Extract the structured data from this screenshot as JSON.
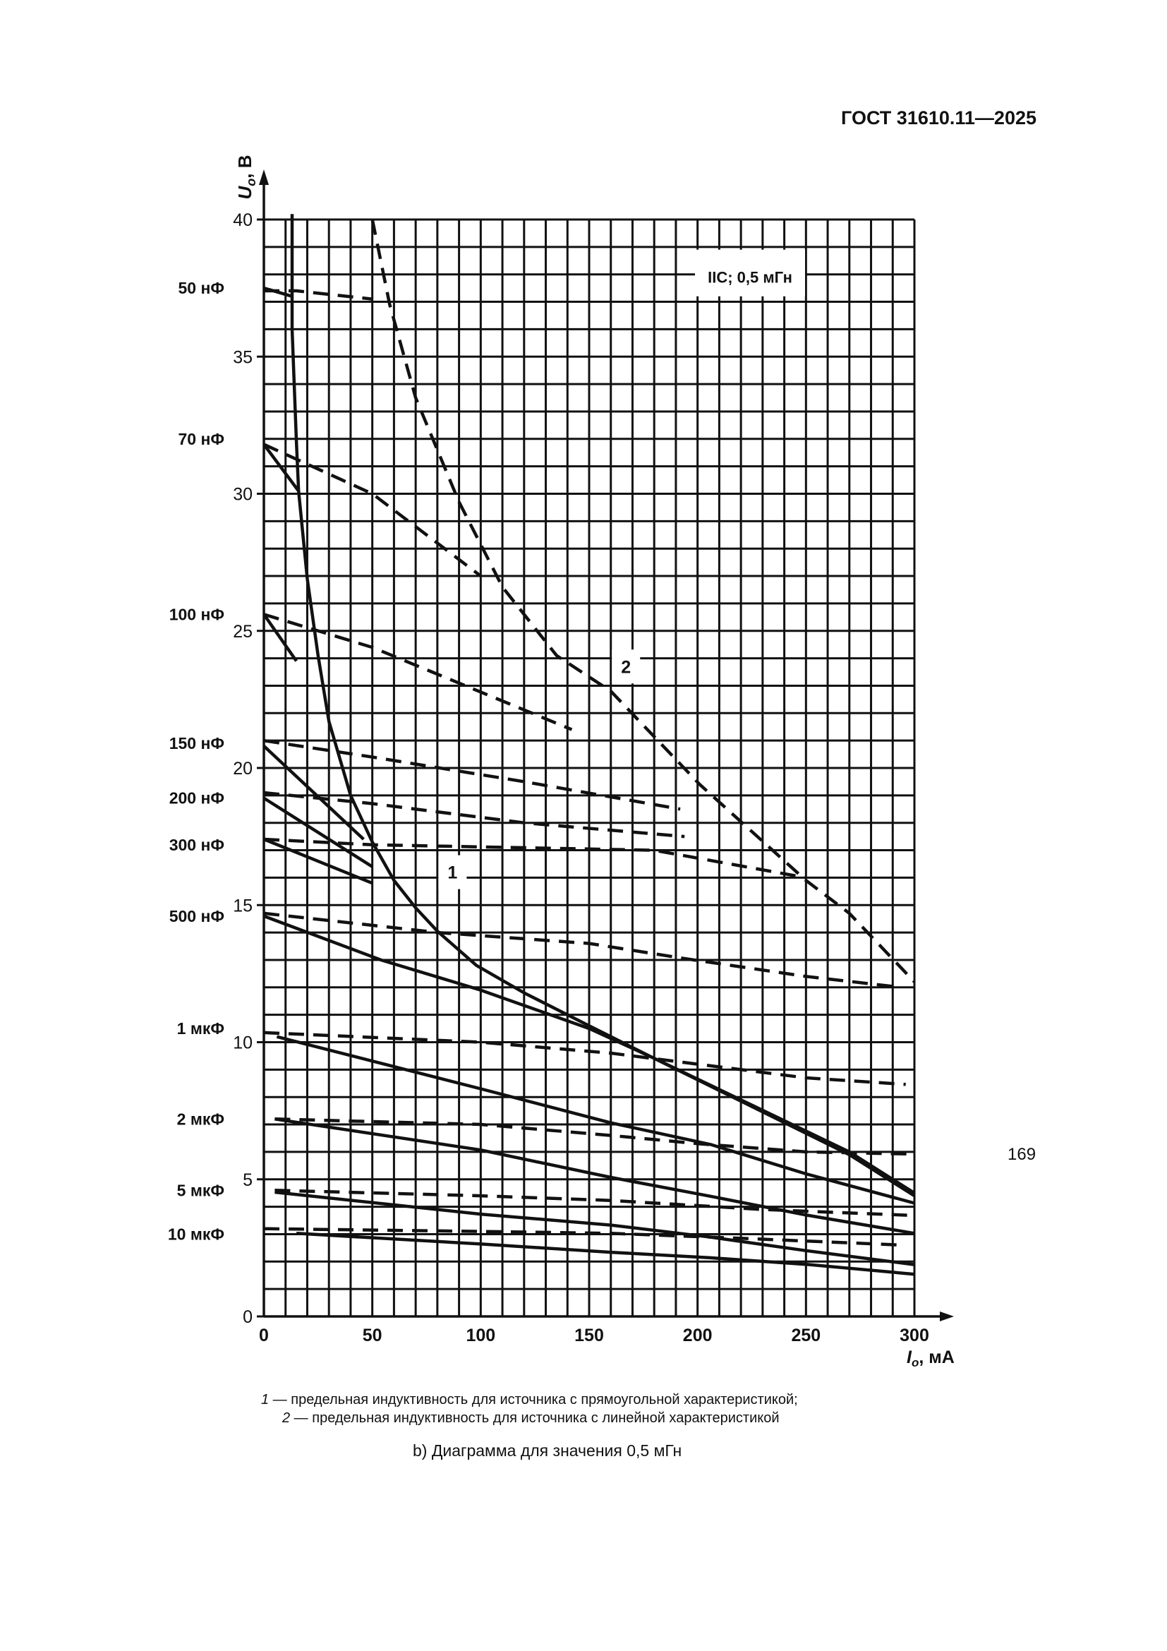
{
  "header": "ГОСТ 31610.11—2025",
  "page_number": "169",
  "legend": [
    {
      "num": "1",
      "text": " — предельная индуктивность для источника с прямоугольной характеристикой;"
    },
    {
      "num": "2",
      "text": " — предельная индуктивность для источника с линейной характеристикой"
    }
  ],
  "caption": "b) Диаграмма для значения 0,5 мГн",
  "chart_data": {
    "type": "line",
    "title": "",
    "annotation": "IIC; 0,5 мГн",
    "xlabel_var": "I",
    "xlabel_sub": "o",
    "xlabel_unit": ", мА",
    "ylabel_var": "U",
    "ylabel_sub": "o",
    "ylabel_unit": ", В",
    "xlim": [
      0,
      300
    ],
    "ylim": [
      0,
      40
    ],
    "x_ticks": [
      0,
      50,
      100,
      150,
      200,
      250,
      300
    ],
    "y_ticks": [
      0,
      5,
      10,
      15,
      20,
      25,
      30,
      35,
      40
    ],
    "grid": {
      "x_step": 10,
      "y_step": 1
    },
    "curves": [
      {
        "label": "1",
        "style": "solid",
        "label_pos": [
          87,
          16.2
        ],
        "points": [
          [
            13,
            40.2
          ],
          [
            13,
            36
          ],
          [
            15,
            31.9
          ],
          [
            16,
            30.1
          ],
          [
            20,
            26.9
          ],
          [
            25,
            24.1
          ],
          [
            30,
            21.7
          ],
          [
            40,
            19
          ],
          [
            50,
            17.3
          ],
          [
            60,
            15.9
          ],
          [
            70,
            14.9
          ],
          [
            80,
            14.05
          ],
          [
            98,
            12.8
          ],
          [
            120,
            11.8
          ],
          [
            150,
            10.6
          ],
          [
            179,
            9.45
          ],
          [
            220,
            7.9
          ],
          [
            270,
            6.0
          ],
          [
            300,
            4.5
          ]
        ]
      },
      {
        "label": "2",
        "style": "dashed",
        "label_pos": [
          167,
          23.7
        ],
        "points": [
          [
            50,
            40
          ],
          [
            58,
            36.9
          ],
          [
            70,
            33.5
          ],
          [
            90,
            29.7
          ],
          [
            110,
            26.6
          ],
          [
            135,
            24.1
          ],
          [
            160,
            22.8
          ],
          [
            201,
            19.4
          ],
          [
            250,
            15.9
          ],
          [
            270,
            14.7
          ],
          [
            300,
            12.2
          ]
        ]
      }
    ],
    "capacitance_series": [
      {
        "name": "50 нФ",
        "label_y": 37.5,
        "solid": [
          [
            0,
            37.5
          ],
          [
            13,
            37.2
          ]
        ],
        "dashed": [
          [
            0,
            37.4
          ],
          [
            15,
            37.4
          ],
          [
            50,
            37.1
          ]
        ]
      },
      {
        "name": "70 нФ",
        "label_y": 32.0,
        "solid": [
          [
            0,
            31.8
          ],
          [
            16,
            30.1
          ]
        ],
        "dashed": [
          [
            0,
            31.8
          ],
          [
            50,
            30
          ],
          [
            100,
            27
          ]
        ]
      },
      {
        "name": "100 нФ",
        "label_y": 25.6,
        "solid": [
          [
            0,
            25.6
          ],
          [
            15,
            23.9
          ]
        ],
        "dashed": [
          [
            0,
            25.6
          ],
          [
            50,
            24.4
          ],
          [
            142,
            21.4
          ]
        ]
      },
      {
        "name": "150 нФ",
        "label_y": 20.9,
        "solid": [
          [
            0,
            20.8
          ],
          [
            46,
            17.4
          ]
        ],
        "dashed": [
          [
            0,
            21
          ],
          [
            50,
            20.4
          ],
          [
            120,
            19.5
          ],
          [
            192,
            18.5
          ]
        ]
      },
      {
        "name": "200 нФ",
        "label_y": 18.9,
        "solid": [
          [
            0,
            18.9
          ],
          [
            50,
            16.4
          ]
        ],
        "dashed": [
          [
            0,
            19.1
          ],
          [
            50,
            18.7
          ],
          [
            120,
            18.0
          ],
          [
            194,
            17.5
          ]
        ]
      },
      {
        "name": "300 нФ",
        "label_y": 17.2,
        "solid": [
          [
            0,
            17.4
          ],
          [
            50,
            15.8
          ]
        ],
        "dashed": [
          [
            0,
            17.4
          ],
          [
            50,
            17.2
          ],
          [
            180,
            17.0
          ],
          [
            250,
            16.0
          ]
        ]
      },
      {
        "name": "500 нФ",
        "label_y": 14.6,
        "solid": [
          [
            0,
            14.6
          ],
          [
            54,
            13.0
          ],
          [
            100,
            11.9
          ],
          [
            150,
            10.5
          ],
          [
            179,
            9.45
          ],
          [
            220,
            7.85
          ],
          [
            270,
            5.9
          ],
          [
            300,
            4.4
          ]
        ],
        "dashed": [
          [
            0,
            14.7
          ],
          [
            80,
            14.0
          ],
          [
            150,
            13.6
          ],
          [
            194,
            13.05
          ],
          [
            250,
            12.4
          ],
          [
            294,
            12.0
          ]
        ]
      },
      {
        "name": "1 мкФ",
        "label_y": 10.5,
        "solid": [
          [
            6,
            10.2
          ],
          [
            100,
            8.3
          ],
          [
            160,
            7.06
          ],
          [
            206,
            6.27
          ],
          [
            250,
            5.2
          ],
          [
            300,
            4.13
          ]
        ],
        "dashed": [
          [
            0,
            10.35
          ],
          [
            100,
            10.0
          ],
          [
            160,
            9.6
          ],
          [
            200,
            9.2
          ],
          [
            250,
            8.7
          ],
          [
            296,
            8.46
          ]
        ]
      },
      {
        "name": "2 мкФ",
        "label_y": 7.2,
        "solid": [
          [
            5,
            7.2
          ],
          [
            100,
            6.07
          ],
          [
            160,
            5.07
          ],
          [
            206,
            4.38
          ],
          [
            250,
            3.7
          ],
          [
            300,
            3.03
          ]
        ],
        "dashed": [
          [
            5,
            7.2
          ],
          [
            100,
            7.0
          ],
          [
            160,
            6.6
          ],
          [
            200,
            6.3
          ],
          [
            250,
            6.0
          ],
          [
            300,
            5.92
          ]
        ]
      },
      {
        "name": "5 мкФ",
        "label_y": 4.6,
        "solid": [
          [
            5,
            4.53
          ],
          [
            100,
            3.73
          ],
          [
            160,
            3.33
          ],
          [
            206,
            2.89
          ],
          [
            250,
            2.4
          ],
          [
            300,
            1.89
          ]
        ],
        "dashed": [
          [
            5,
            4.6
          ],
          [
            100,
            4.4
          ],
          [
            160,
            4.23
          ],
          [
            230,
            3.9
          ],
          [
            300,
            3.68
          ]
        ]
      },
      {
        "name": "10 мкФ",
        "label_y": 3.0,
        "solid": [
          [
            15,
            3.03
          ],
          [
            100,
            2.64
          ],
          [
            160,
            2.34
          ],
          [
            206,
            2.14
          ],
          [
            250,
            1.9
          ],
          [
            300,
            1.54
          ]
        ],
        "dashed": [
          [
            0,
            3.2
          ],
          [
            100,
            3.1
          ],
          [
            160,
            3.03
          ],
          [
            220,
            2.85
          ],
          [
            295,
            2.6
          ]
        ]
      }
    ]
  }
}
